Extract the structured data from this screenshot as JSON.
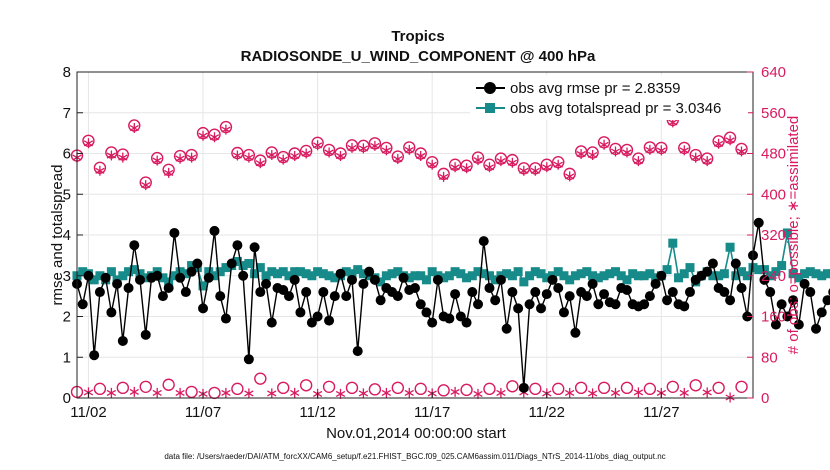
{
  "chart_data": {
    "type": "line",
    "title": "Tropics",
    "subtitle": "RADIOSONDE_U_WIND_COMPONENT @ 400 hPa",
    "xlabel": "Nov.01,2014 00:00:00 start",
    "ylabel": "rmse and totalspread",
    "ylabel_right": "# of obs: o=possible; ∗=assimilated",
    "footnote": "data file: /Users/raeder/DAI/ATM_forcXX/CAM6_setup/f.e21.FHIST_BGC.f09_025.CAM6assim.011/Diags_NTrS_2014-11/obs_diag_output.nc",
    "x_ticks": [
      2,
      7,
      12,
      17,
      22,
      27
    ],
    "x_tick_labels": [
      "11/02",
      "11/07",
      "11/12",
      "11/17",
      "11/22",
      "11/27"
    ],
    "xlim": [
      1.5,
      31.0
    ],
    "ylim": [
      0,
      8
    ],
    "y_ticks": [
      "0",
      "1",
      "2",
      "3",
      "4",
      "5",
      "6",
      "7",
      "8"
    ],
    "ylim_right": [
      0,
      640
    ],
    "y_ticks_right": [
      "0",
      "80",
      "160",
      "240",
      "320",
      "400",
      "480",
      "560",
      "640"
    ],
    "grid": true,
    "legend_position": "top-right",
    "colors": {
      "rmse": "#000000",
      "spread": "#178a8a",
      "counts": "#d81b60"
    },
    "series": [
      {
        "name": "obs avg rmse pr = 2.8359",
        "x_start": 1.5,
        "x_step": 0.25,
        "values": [
          2.8,
          2.3,
          3.0,
          1.05,
          2.6,
          2.95,
          2.1,
          2.8,
          1.4,
          2.7,
          3.75,
          2.9,
          1.55,
          2.95,
          3.0,
          2.5,
          2.7,
          4.05,
          2.95,
          2.6,
          3.1,
          3.3,
          2.2,
          2.95,
          4.1,
          2.5,
          1.95,
          3.3,
          3.75,
          3.0,
          0.95,
          3.7,
          2.6,
          2.8,
          1.85,
          2.7,
          2.65,
          2.5,
          2.9,
          2.1,
          2.6,
          1.85,
          2.0,
          2.6,
          1.9,
          2.5,
          3.05,
          2.5,
          2.9,
          1.15,
          2.8,
          3.1,
          2.9,
          2.4,
          2.7,
          2.6,
          2.5,
          2.95,
          2.65,
          2.7,
          2.3,
          2.1,
          1.85,
          2.9,
          2.0,
          1.95,
          2.55,
          2.0,
          1.85,
          2.6,
          2.3,
          3.85,
          2.7,
          2.4,
          2.9,
          1.7,
          2.6,
          2.2,
          0.25,
          2.3,
          2.6,
          2.2,
          2.55,
          2.9,
          2.7,
          2.1,
          2.5,
          1.6,
          2.6,
          2.5,
          2.8,
          2.3,
          2.55,
          2.35,
          2.3,
          2.7,
          2.65,
          2.3,
          2.25,
          2.3,
          2.5,
          2.8,
          3.0,
          2.4,
          2.6,
          2.3,
          2.25,
          2.6,
          2.9,
          3.0,
          3.1,
          3.3,
          2.7,
          2.6,
          2.4,
          3.3,
          2.7,
          2.0,
          3.5,
          4.3,
          2.9,
          2.6,
          1.8,
          2.3,
          2.0,
          2.4,
          1.8,
          2.8,
          2.6,
          1.7,
          2.1,
          2.4,
          2.6,
          3.4,
          2.3,
          2.1
        ]
      },
      {
        "name": "obs avg totalspread pr = 3.0346",
        "x_start": 1.5,
        "x_step": 0.25,
        "values": [
          3.0,
          3.1,
          3.05,
          2.9,
          3.0,
          2.9,
          3.1,
          2.9,
          3.0,
          3.1,
          3.15,
          3.05,
          2.95,
          3.0,
          3.1,
          2.95,
          2.85,
          3.0,
          3.1,
          3.05,
          3.25,
          3.2,
          2.75,
          3.1,
          3.0,
          3.1,
          3.2,
          3.25,
          3.35,
          3.25,
          3.3,
          3.05,
          3.2,
          3.0,
          3.1,
          3.05,
          3.1,
          3.0,
          3.1,
          3.1,
          3.05,
          3.0,
          3.1,
          3.05,
          3.0,
          2.95,
          3.0,
          3.1,
          3.05,
          3.15,
          3.05,
          3.0,
          2.95,
          2.85,
          3.0,
          3.05,
          3.1,
          3.0,
          2.95,
          3.0,
          3.0,
          2.9,
          3.1,
          3.0,
          2.95,
          3.0,
          3.1,
          3.05,
          2.95,
          3.0,
          3.1,
          3.05,
          3.0,
          2.9,
          3.0,
          3.05,
          3.0,
          3.1,
          2.85,
          3.0,
          3.1,
          3.05,
          2.95,
          3.0,
          3.1,
          3.0,
          2.9,
          3.0,
          3.05,
          3.1,
          3.0,
          2.95,
          3.0,
          3.05,
          3.1,
          3.0,
          2.9,
          3.05,
          3.0,
          3.0,
          3.05,
          2.95,
          3.0,
          3.15,
          3.8,
          2.95,
          3.05,
          3.2,
          2.85,
          3.0,
          3.1,
          3.0,
          3.0,
          3.05,
          3.7,
          3.0,
          3.1,
          3.0,
          3.2,
          3.15,
          3.15,
          3.0,
          3.1,
          3.25,
          4.05,
          3.05,
          2.95,
          3.05,
          3.1,
          3.05,
          3.0,
          3.05,
          3.05,
          2.95,
          3.0,
          2.9
        ]
      }
    ],
    "counts_possible": {
      "x_start": 1.5,
      "x_step": 0.5,
      "values": [
        476,
        505,
        452,
        482,
        478,
        535,
        423,
        471,
        448,
        475,
        477,
        520,
        517,
        532,
        481,
        477,
        466,
        482,
        473,
        480,
        485,
        501,
        487,
        480,
        496,
        495,
        500,
        491,
        474,
        492,
        480,
        463,
        440,
        458,
        456,
        472,
        458,
        470,
        467,
        451,
        451,
        458,
        463,
        440,
        484,
        482,
        502,
        489,
        487,
        470,
        492,
        491,
        546,
        491,
        477,
        470,
        504,
        511,
        489
      ]
    },
    "counts_assimilated": {
      "x_start": 1.5,
      "x_step": 0.5,
      "values": [
        472,
        500,
        446,
        476,
        472,
        530,
        418,
        466,
        442,
        470,
        472,
        515,
        512,
        527,
        476,
        472,
        461,
        477,
        468,
        475,
        480,
        496,
        482,
        475,
        491,
        490,
        495,
        486,
        469,
        487,
        475,
        458,
        434,
        453,
        451,
        467,
        453,
        465,
        462,
        446,
        446,
        453,
        458,
        435,
        479,
        477,
        497,
        484,
        482,
        465,
        487,
        486,
        541,
        486,
        472,
        465,
        499,
        506,
        484
      ]
    },
    "counts_low_possible": {
      "x_start": 1.5,
      "x_step": 1.0,
      "values": [
        12,
        18,
        20,
        22,
        26,
        12,
        10,
        18,
        38,
        20,
        25,
        22,
        20,
        17,
        20,
        18,
        15,
        16,
        18,
        23,
        18,
        18,
        20,
        20,
        20,
        18,
        22,
        25,
        20,
        22
      ]
    },
    "counts_low_assimilated": {
      "x_start": 2.0,
      "x_step": 1.0,
      "values": [
        11,
        10,
        12,
        10,
        10,
        8,
        10,
        9,
        9,
        10,
        8,
        8,
        9,
        10,
        10,
        9,
        12,
        8,
        10,
        11,
        9,
        10,
        9,
        10,
        11,
        10,
        10,
        11,
        1
      ]
    }
  }
}
